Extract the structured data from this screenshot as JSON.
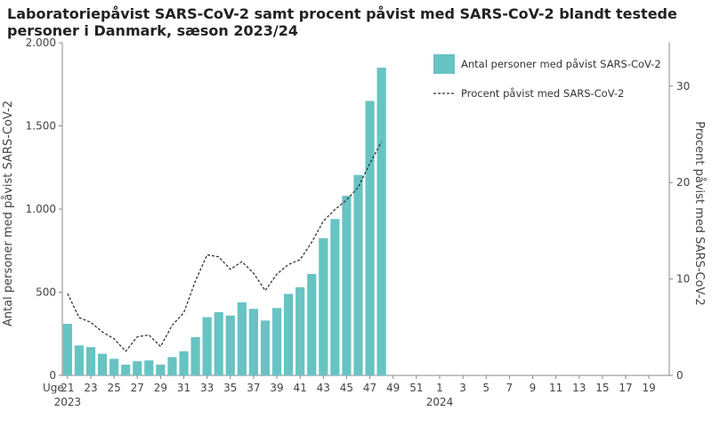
{
  "title": "Laboratoriepåvist SARS-CoV-2 samt procent påvist med SARS-CoV-2 blandt testede personer i Danmark, sæson 2023/24",
  "colors": {
    "bar": "#68c3c3",
    "line": "#333333",
    "axis": "#888888"
  },
  "chart_data": {
    "type": "bar",
    "xlabel_prefix": "Uge",
    "ylabel": "Antal personer med påvist SARS-CoV-2",
    "y2label": "Procent påvist med SARS-CoV-2",
    "ylim": [
      0,
      2000
    ],
    "y2lim": [
      0,
      34.5
    ],
    "y_ticks": [
      0,
      500,
      1000,
      1500,
      2000
    ],
    "y_tick_labels": [
      "0",
      "500",
      "1.000",
      "1.500",
      "2.000"
    ],
    "y2_ticks": [
      0,
      10,
      20,
      30
    ],
    "y2_tick_labels": [
      "0",
      "10",
      "20",
      "30"
    ],
    "weeks": [
      21,
      22,
      23,
      24,
      25,
      26,
      27,
      28,
      29,
      30,
      31,
      32,
      33,
      34,
      35,
      36,
      37,
      38,
      39,
      40,
      41,
      42,
      43,
      44,
      45,
      46,
      47,
      48,
      49,
      50,
      51,
      52,
      1,
      2,
      3,
      4,
      5,
      6,
      7,
      8,
      9,
      10,
      11,
      12,
      13,
      14,
      15,
      16,
      17,
      18,
      19,
      20
    ],
    "x_tick_labels": [
      "21",
      "23",
      "25",
      "27",
      "29",
      "31",
      "33",
      "35",
      "37",
      "39",
      "41",
      "43",
      "45",
      "47",
      "49",
      "51",
      "1",
      "3",
      "5",
      "7",
      "9",
      "11",
      "13",
      "15",
      "17",
      "19"
    ],
    "year_labels": [
      {
        "label": "2023",
        "week_index": 0
      },
      {
        "label": "2024",
        "week_index": 32
      }
    ],
    "series": [
      {
        "name": "Antal personer med påvist SARS-CoV-2",
        "type": "bar",
        "values": [
          310,
          180,
          170,
          130,
          100,
          65,
          85,
          90,
          65,
          110,
          145,
          230,
          350,
          380,
          360,
          440,
          400,
          330,
          405,
          490,
          530,
          610,
          825,
          940,
          1080,
          1205,
          1650,
          1850
        ]
      },
      {
        "name": "Procent påvist med SARS-CoV-2",
        "type": "line",
        "values": [
          8.5,
          6.0,
          5.5,
          4.5,
          3.8,
          2.5,
          4.0,
          4.2,
          3.0,
          5.2,
          6.5,
          9.8,
          12.5,
          12.3,
          11.0,
          11.8,
          10.6,
          8.8,
          10.5,
          11.5,
          12.0,
          13.8,
          16.0,
          17.2,
          18.2,
          19.5,
          22.0,
          24.2
        ]
      }
    ],
    "legend": "top-right",
    "grid": false
  }
}
